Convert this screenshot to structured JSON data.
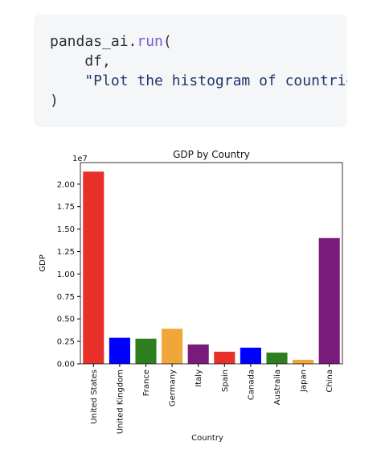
{
  "code": {
    "lines": [
      [
        "pandas_ai.",
        "run",
        "("
      ],
      [
        "    df,"
      ],
      [
        "    \"Plot the histogram of countrie"
      ],
      [
        ")"
      ]
    ]
  },
  "chart_data": {
    "type": "bar",
    "title": "GDP by Country",
    "x_label": "Country",
    "y_label": "GDP",
    "y_offset_label": "1e7",
    "categories": [
      "United States",
      "United Kingdom",
      "France",
      "Germany",
      "Italy",
      "Spain",
      "Canada",
      "Australia",
      "Japan",
      "China"
    ],
    "values": [
      2.14,
      0.29,
      0.28,
      0.39,
      0.215,
      0.135,
      0.18,
      0.125,
      0.045,
      1.4
    ],
    "colors": [
      "#e8302a",
      "#0000ff",
      "#2e7d1e",
      "#f0a73a",
      "#7a1a7a",
      "#e8302a",
      "#0000ff",
      "#2e7d1e",
      "#f0a73a",
      "#7a1a7a"
    ],
    "ylim": [
      0,
      2.24
    ],
    "yticks": [
      {
        "value": 0,
        "label": "0.00"
      },
      {
        "value": 0.25,
        "label": "0.25"
      },
      {
        "value": 0.5,
        "label": "0.50"
      },
      {
        "value": 0.75,
        "label": "0.75"
      },
      {
        "value": 1,
        "label": "1.00"
      },
      {
        "value": 1.25,
        "label": "1.25"
      },
      {
        "value": 1.5,
        "label": "1.50"
      },
      {
        "value": 1.75,
        "label": "1.75"
      },
      {
        "value": 2,
        "label": "2.00"
      }
    ],
    "grid": false
  }
}
